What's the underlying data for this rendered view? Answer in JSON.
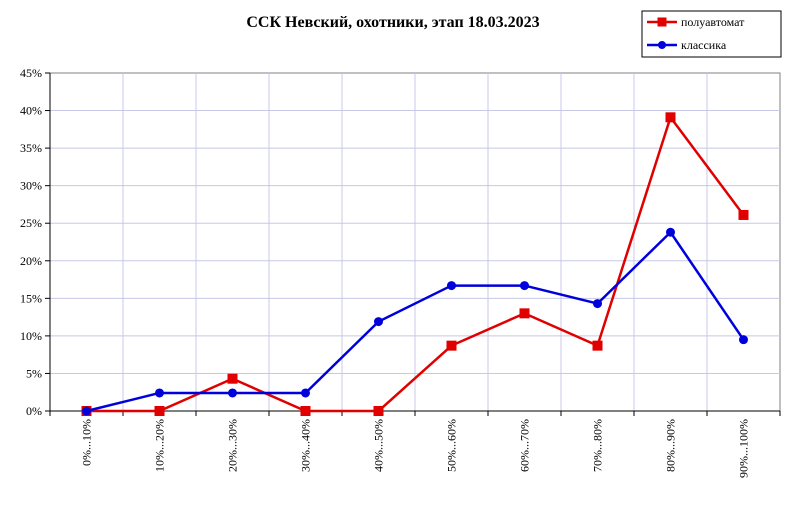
{
  "chart_data": {
    "type": "line",
    "title": "ССК Невский, охотники, этап 18.03.2023",
    "xlabel": "",
    "ylabel": "",
    "categories": [
      "0%...10%",
      "10%...20%",
      "20%...30%",
      "30%...40%",
      "40%...50%",
      "50%...60%",
      "60%...70%",
      "70%...80%",
      "80%...90%",
      "90%...100%"
    ],
    "ylim": [
      0,
      45
    ],
    "yticks": [
      0,
      5,
      10,
      15,
      20,
      25,
      30,
      35,
      40,
      45
    ],
    "ytick_labels": [
      "0%",
      "5%",
      "10%",
      "15%",
      "20%",
      "25%",
      "30%",
      "35%",
      "40%",
      "45%"
    ],
    "grid": true,
    "legend_position": "top-right",
    "series": [
      {
        "name": "полуавтомат",
        "color": "#e00000",
        "marker": "square",
        "values": [
          0,
          0,
          4.3,
          0,
          0,
          8.7,
          13.0,
          8.7,
          39.1,
          26.1
        ]
      },
      {
        "name": "классика",
        "color": "#0000dd",
        "marker": "circle",
        "values": [
          0,
          2.4,
          2.4,
          2.4,
          11.9,
          16.7,
          16.7,
          14.3,
          23.8,
          9.5
        ]
      }
    ]
  }
}
